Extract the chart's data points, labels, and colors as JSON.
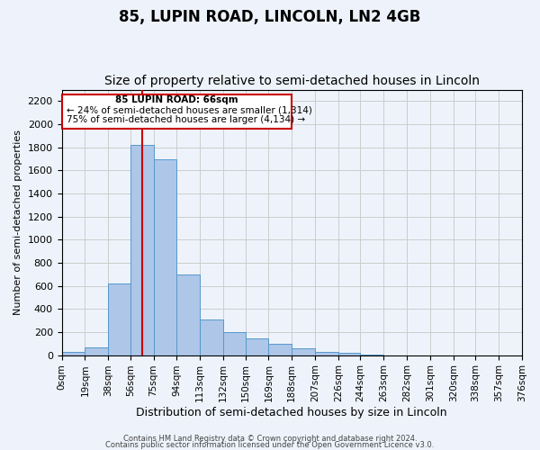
{
  "title": "85, LUPIN ROAD, LINCOLN, LN2 4GB",
  "subtitle": "Size of property relative to semi-detached houses in Lincoln",
  "xlabel": "Distribution of semi-detached houses by size in Lincoln",
  "ylabel": "Number of semi-detached properties",
  "bin_labels": [
    "0sqm",
    "19sqm",
    "38sqm",
    "56sqm",
    "75sqm",
    "94sqm",
    "113sqm",
    "132sqm",
    "150sqm",
    "169sqm",
    "188sqm",
    "207sqm",
    "226sqm",
    "244sqm",
    "263sqm",
    "282sqm",
    "301sqm",
    "320sqm",
    "338sqm",
    "357sqm",
    "376sqm"
  ],
  "bin_edges": [
    0,
    19,
    38,
    56,
    75,
    94,
    113,
    132,
    150,
    169,
    188,
    207,
    226,
    244,
    263,
    282,
    301,
    320,
    338,
    357,
    376
  ],
  "bar_values": [
    28,
    70,
    620,
    1820,
    1700,
    700,
    310,
    200,
    145,
    100,
    60,
    30,
    20,
    5,
    0,
    0,
    0,
    0,
    0,
    0
  ],
  "bar_color": "#aec6e8",
  "bar_edge_color": "#5599cc",
  "red_line_x": 66,
  "annotation_title": "85 LUPIN ROAD: 66sqm",
  "annotation_line1": "← 24% of semi-detached houses are smaller (1,314)",
  "annotation_line2": "75% of semi-detached houses are larger (4,134) →",
  "annotation_box_color": "#ffffff",
  "annotation_border_color": "#cc0000",
  "ylim": [
    0,
    2300
  ],
  "yticks": [
    0,
    200,
    400,
    600,
    800,
    1000,
    1200,
    1400,
    1600,
    1800,
    2000,
    2200
  ],
  "footer1": "Contains HM Land Registry data © Crown copyright and database right 2024.",
  "footer2": "Contains public sector information licensed under the Open Government Licence v3.0.",
  "bg_color": "#eef3fb",
  "plot_bg_color": "#eef3fb",
  "grid_color": "#cccccc",
  "title_fontsize": 12,
  "subtitle_fontsize": 10
}
